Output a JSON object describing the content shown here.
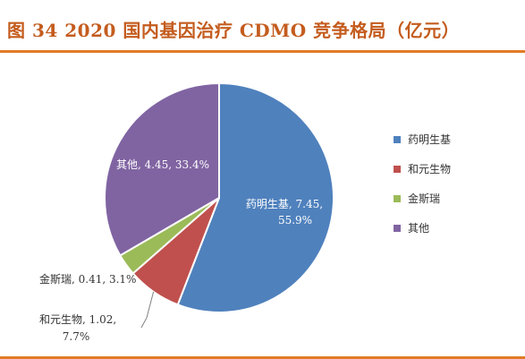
{
  "title": "图 34 2020 国内基因治疗 CDMO 竞争格局（亿元）",
  "chart_data": {
    "type": "pie",
    "slices": [
      {
        "name": "药明生基",
        "value": 7.45,
        "percent": "55.9%",
        "color": "#4f81bd",
        "label_line1": "药明生基, 7.45,",
        "label_line2": "55.9%"
      },
      {
        "name": "和元生物",
        "value": 1.02,
        "percent": "7.7%",
        "color": "#c0504d",
        "label_line1": "和元生物, 1.02,",
        "label_line2": "7.7%"
      },
      {
        "name": "金斯瑞",
        "value": 0.41,
        "percent": "3.1%",
        "color": "#9bbb59",
        "label_line1": "金斯瑞, 0.41, 3.1%",
        "label_line2": ""
      },
      {
        "name": "其他",
        "value": 4.45,
        "percent": "33.4%",
        "color": "#8064a2",
        "label_line1": "其他, 4.45, 33.4%",
        "label_line2": ""
      }
    ],
    "legend_position": "right"
  }
}
